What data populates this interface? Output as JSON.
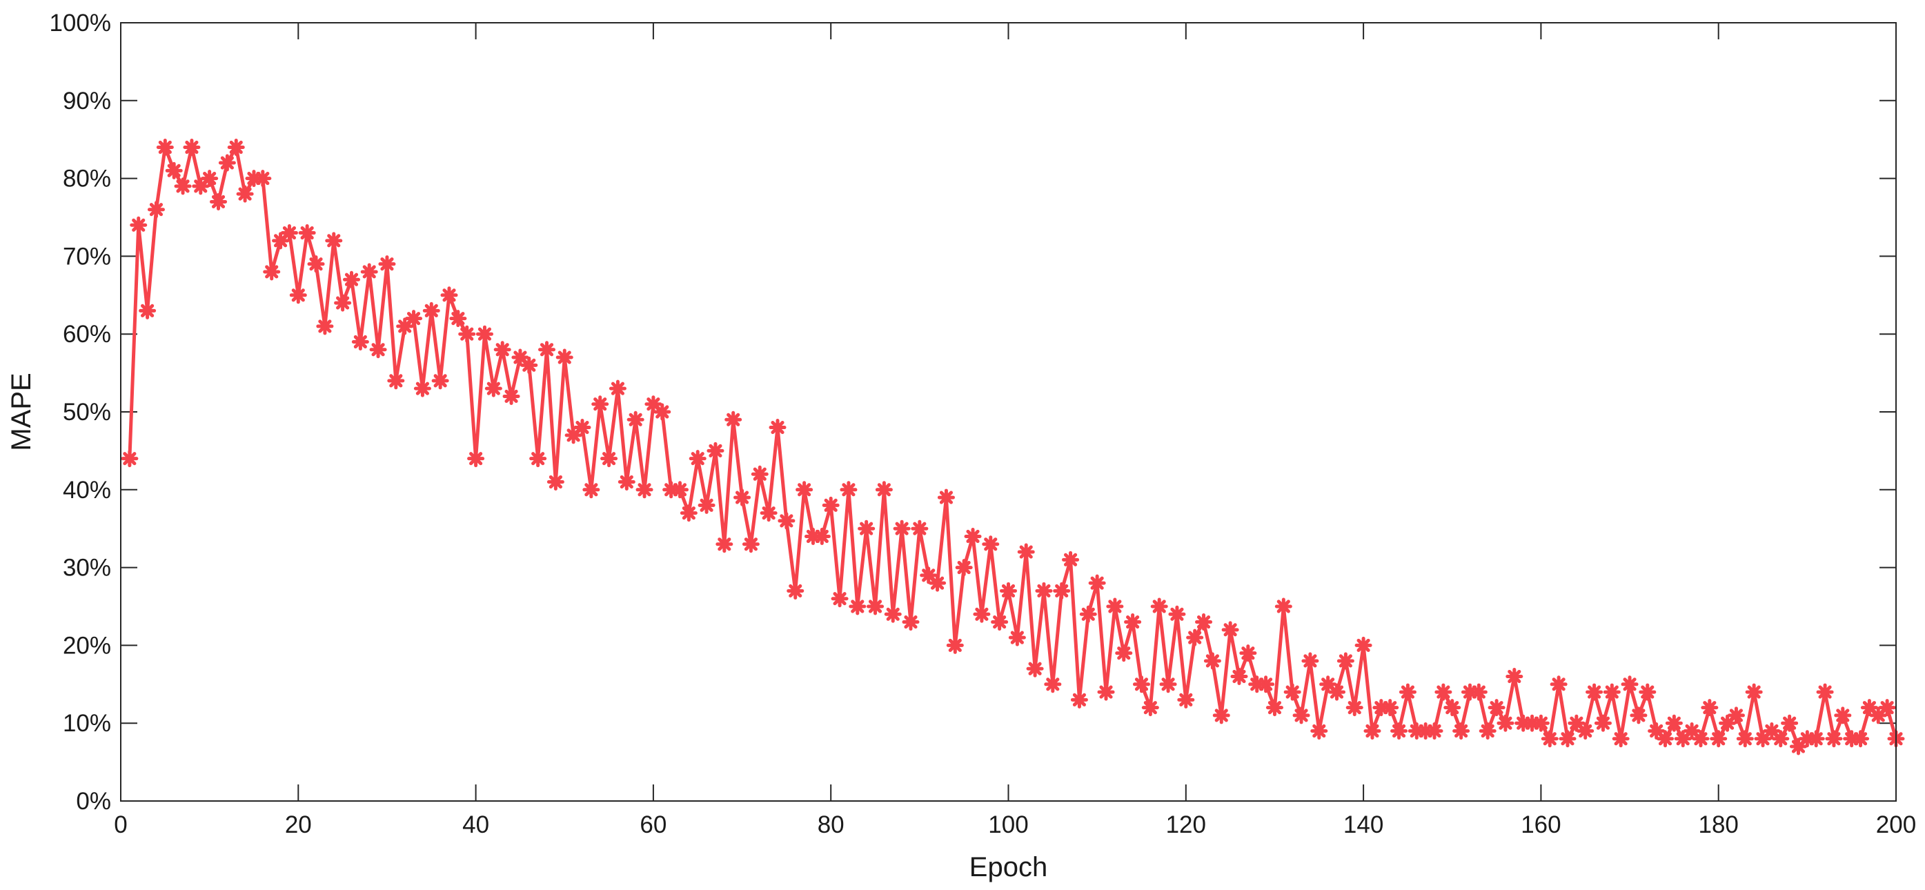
{
  "chart_data": {
    "type": "line",
    "title": "",
    "xlabel": "Epoch",
    "ylabel": "MAPE",
    "xlim": [
      0,
      200
    ],
    "ylim": [
      0,
      100
    ],
    "xticks": [
      0,
      20,
      40,
      60,
      80,
      100,
      120,
      140,
      160,
      180,
      200
    ],
    "yticks": [
      0,
      10,
      20,
      30,
      40,
      50,
      60,
      70,
      80,
      90,
      100
    ],
    "ytick_labels": [
      "0%",
      "10%",
      "20%",
      "30%",
      "40%",
      "50%",
      "60%",
      "70%",
      "80%",
      "90%",
      "100%"
    ],
    "grid": false,
    "legend": "none",
    "marker": "asterisk",
    "color": "#f5434b",
    "series": [
      {
        "x_start": 1,
        "x_step": 1,
        "values": [
          44,
          74,
          63,
          76,
          84,
          81,
          79,
          84,
          79,
          80,
          77,
          82,
          84,
          78,
          80,
          80,
          68,
          72,
          73,
          65,
          73,
          69,
          61,
          72,
          64,
          67,
          59,
          68,
          58,
          69,
          54,
          61,
          62,
          53,
          63,
          54,
          65,
          62,
          60,
          44,
          60,
          53,
          58,
          52,
          57,
          56,
          44,
          58,
          41,
          57,
          47,
          48,
          40,
          51,
          44,
          53,
          41,
          49,
          40,
          51,
          50,
          40,
          40,
          37,
          44,
          38,
          45,
          33,
          49,
          39,
          33,
          42,
          37,
          48,
          36,
          27,
          40,
          34,
          34,
          38,
          26,
          40,
          25,
          35,
          25,
          40,
          24,
          35,
          23,
          35,
          29,
          28,
          39,
          20,
          30,
          34,
          24,
          33,
          23,
          27,
          21,
          32,
          17,
          27,
          15,
          27,
          31,
          13,
          24,
          28,
          14,
          25,
          19,
          23,
          15,
          12,
          25,
          15,
          24,
          13,
          21,
          23,
          18,
          11,
          22,
          16,
          19,
          15,
          15,
          12,
          25,
          14,
          11,
          18,
          9,
          15,
          14,
          18,
          12,
          20,
          9,
          12,
          12,
          9,
          14,
          9,
          9,
          9,
          14,
          12,
          9,
          14,
          14,
          9,
          12,
          10,
          16,
          10,
          10,
          10,
          8,
          15,
          8,
          10,
          9,
          14,
          10,
          14,
          8,
          15,
          11,
          14,
          9,
          8,
          10,
          8,
          9,
          8,
          12,
          8,
          10,
          11,
          8,
          14,
          8,
          9,
          8,
          10,
          7,
          8,
          8,
          14,
          8,
          11,
          8,
          8,
          12,
          11,
          12,
          8
        ]
      }
    ]
  }
}
